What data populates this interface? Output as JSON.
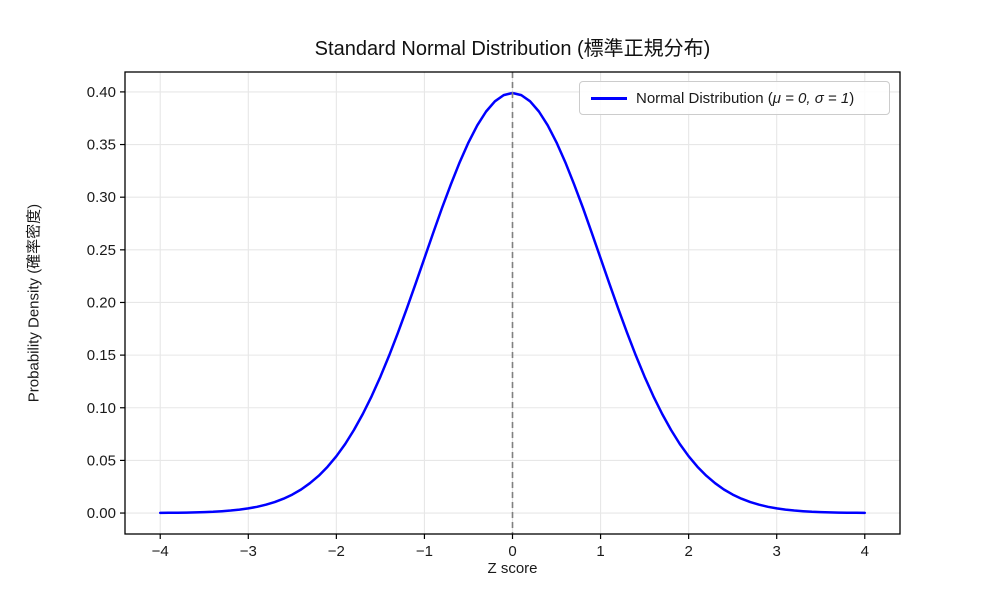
{
  "figure": {
    "title": "Standard Normal Distribution (標準正規分布)",
    "xlabel": "Z score",
    "ylabel": "Probability Density (確率密度)"
  },
  "legend": {
    "label_prefix": "Normal Distribution (",
    "label_math": "μ = 0, σ = 1",
    "label_suffix": ")",
    "line_color": "#0000ff"
  },
  "chart_data": {
    "type": "line",
    "title": "Standard Normal Distribution (標準正規分布)",
    "xlabel": "Z score",
    "ylabel": "Probability Density (確率密度)",
    "legend_entries": [
      "Normal Distribution (μ = 0, σ = 1)"
    ],
    "legend_position": "upper right",
    "grid": true,
    "axes": {
      "xlim": [
        -4.4,
        4.4
      ],
      "ylim": [
        -0.0199,
        0.4189
      ],
      "xticks": {
        "values": [
          -4,
          -3,
          -2,
          -1,
          0,
          1,
          2,
          3,
          4
        ],
        "labels": [
          "−4",
          "−3",
          "−2",
          "−1",
          "0",
          "1",
          "2",
          "3",
          "4"
        ]
      },
      "yticks": {
        "values": [
          0.0,
          0.05,
          0.1,
          0.15,
          0.2,
          0.25,
          0.3,
          0.35,
          0.4
        ],
        "labels": [
          "0.00",
          "0.05",
          "0.10",
          "0.15",
          "0.20",
          "0.25",
          "0.30",
          "0.35",
          "0.40"
        ]
      }
    },
    "vline": {
      "x": 0,
      "color": "#808080",
      "style": "dashed"
    },
    "style": {
      "grid_color": "#e7e7e7",
      "curve_color": "#0000ff",
      "spine_color": "#000000",
      "background": "#ffffff"
    },
    "series": [
      {
        "name": "Normal Distribution (μ = 0, σ = 1)",
        "color": "#0000ff",
        "mu": 0,
        "sigma": 1,
        "x": [
          -4.0,
          -3.9,
          -3.8,
          -3.7,
          -3.6,
          -3.5,
          -3.4,
          -3.3,
          -3.2,
          -3.1,
          -3.0,
          -2.9,
          -2.8,
          -2.7,
          -2.6,
          -2.5,
          -2.4,
          -2.3,
          -2.2,
          -2.1,
          -2.0,
          -1.9,
          -1.8,
          -1.7,
          -1.6,
          -1.5,
          -1.4,
          -1.3,
          -1.2,
          -1.1,
          -1.0,
          -0.9,
          -0.8,
          -0.7,
          -0.6,
          -0.5,
          -0.4,
          -0.3,
          -0.2,
          -0.1,
          0.0,
          0.1,
          0.2,
          0.3,
          0.4,
          0.5,
          0.6,
          0.7,
          0.8,
          0.9,
          1.0,
          1.1,
          1.2,
          1.3,
          1.4,
          1.5,
          1.6,
          1.7,
          1.8,
          1.9,
          2.0,
          2.1,
          2.2,
          2.3,
          2.4,
          2.5,
          2.6,
          2.7,
          2.8,
          2.9,
          3.0,
          3.1,
          3.2,
          3.3,
          3.4,
          3.5,
          3.6,
          3.7,
          3.8,
          3.9,
          4.0
        ],
        "y": [
          0.00013,
          0.0002,
          0.00029,
          0.00042,
          0.00061,
          0.00087,
          0.00123,
          0.00172,
          0.00238,
          0.00327,
          0.00443,
          0.00595,
          0.00792,
          0.01042,
          0.01358,
          0.01753,
          0.02239,
          0.02833,
          0.03547,
          0.04398,
          0.05399,
          0.06562,
          0.07895,
          0.09405,
          0.11092,
          0.12952,
          0.14973,
          0.17137,
          0.19419,
          0.21785,
          0.24197,
          0.26609,
          0.28969,
          0.31225,
          0.33322,
          0.35207,
          0.36827,
          0.38139,
          0.39104,
          0.39695,
          0.39894,
          0.39695,
          0.39104,
          0.38139,
          0.36827,
          0.35207,
          0.33322,
          0.31225,
          0.28969,
          0.26609,
          0.24197,
          0.21785,
          0.19419,
          0.17137,
          0.14973,
          0.12952,
          0.11092,
          0.09405,
          0.07895,
          0.06562,
          0.05399,
          0.04398,
          0.03547,
          0.02833,
          0.02239,
          0.01753,
          0.01358,
          0.01042,
          0.00792,
          0.00595,
          0.00443,
          0.00327,
          0.00238,
          0.00172,
          0.00123,
          0.00087,
          0.00061,
          0.00042,
          0.00029,
          0.0002,
          0.00013
        ]
      }
    ]
  }
}
